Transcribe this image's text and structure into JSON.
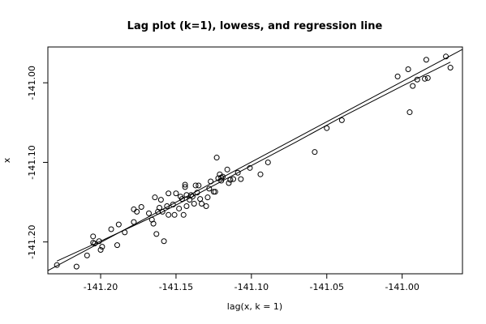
{
  "chart_data": {
    "type": "scatter",
    "title": "Lag plot (k=1), lowess, and regression line",
    "xlabel": "lag(x, k = 1)",
    "ylabel": "x",
    "xlim": [
      -141.235,
      -140.96
    ],
    "ylim": [
      -141.24,
      -140.955
    ],
    "xticks": [
      -141.2,
      -141.15,
      -141.1,
      -141.05,
      -141.0
    ],
    "xtick_labels": [
      "-141.20",
      "-141.15",
      "-141.10",
      "-141.05",
      "-141.00"
    ],
    "yticks": [
      -141.2,
      -141.1,
      -141.0
    ],
    "ytick_labels": [
      "-141.20",
      "-141.10",
      "-141.00"
    ],
    "grid": false,
    "points": [
      [
        -141.229,
        -141.229
      ],
      [
        -141.216,
        -141.231
      ],
      [
        -141.209,
        -141.217
      ],
      [
        -141.205,
        -141.193
      ],
      [
        -141.205,
        -141.201
      ],
      [
        -141.204,
        -141.202
      ],
      [
        -141.201,
        -141.199
      ],
      [
        -141.2,
        -141.21
      ],
      [
        -141.199,
        -141.206
      ],
      [
        -141.193,
        -141.184
      ],
      [
        -141.189,
        -141.204
      ],
      [
        -141.188,
        -141.178
      ],
      [
        -141.184,
        -141.188
      ],
      [
        -141.178,
        -141.175
      ],
      [
        -141.178,
        -141.159
      ],
      [
        -141.176,
        -141.162
      ],
      [
        -141.173,
        -141.156
      ],
      [
        -141.168,
        -141.164
      ],
      [
        -141.166,
        -141.172
      ],
      [
        -141.165,
        -141.177
      ],
      [
        -141.164,
        -141.144
      ],
      [
        -141.163,
        -141.19
      ],
      [
        -141.162,
        -141.162
      ],
      [
        -141.161,
        -141.157
      ],
      [
        -141.16,
        -141.147
      ],
      [
        -141.159,
        -141.162
      ],
      [
        -141.158,
        -141.199
      ],
      [
        -141.156,
        -141.155
      ],
      [
        -141.155,
        -141.166
      ],
      [
        -141.155,
        -141.139
      ],
      [
        -141.152,
        -141.153
      ],
      [
        -141.151,
        -141.166
      ],
      [
        -141.15,
        -141.139
      ],
      [
        -141.148,
        -141.158
      ],
      [
        -141.147,
        -141.143
      ],
      [
        -141.146,
        -141.146
      ],
      [
        -141.145,
        -141.166
      ],
      [
        -141.144,
        -141.128
      ],
      [
        -141.144,
        -141.131
      ],
      [
        -141.143,
        -141.141
      ],
      [
        -141.143,
        -141.155
      ],
      [
        -141.141,
        -141.147
      ],
      [
        -141.14,
        -141.141
      ],
      [
        -141.139,
        -141.143
      ],
      [
        -141.138,
        -141.152
      ],
      [
        -141.137,
        -141.129
      ],
      [
        -141.136,
        -141.138
      ],
      [
        -141.135,
        -141.129
      ],
      [
        -141.134,
        -141.146
      ],
      [
        -141.133,
        -141.152
      ],
      [
        -141.13,
        -141.155
      ],
      [
        -141.129,
        -141.144
      ],
      [
        -141.128,
        -141.133
      ],
      [
        -141.127,
        -141.124
      ],
      [
        -141.125,
        -141.137
      ],
      [
        -141.124,
        -141.137
      ],
      [
        -141.123,
        -141.094
      ],
      [
        -141.122,
        -141.12
      ],
      [
        -141.121,
        -141.115
      ],
      [
        -141.12,
        -141.123
      ],
      [
        -141.12,
        -141.119
      ],
      [
        -141.119,
        -141.118
      ],
      [
        -141.116,
        -141.109
      ],
      [
        -141.115,
        -141.126
      ],
      [
        -141.114,
        -141.122
      ],
      [
        -141.112,
        -141.121
      ],
      [
        -141.109,
        -141.113
      ],
      [
        -141.107,
        -141.121
      ],
      [
        -141.101,
        -141.107
      ],
      [
        -141.094,
        -141.115
      ],
      [
        -141.089,
        -141.1
      ],
      [
        -141.058,
        -141.087
      ],
      [
        -141.05,
        -141.057
      ],
      [
        -141.04,
        -141.047
      ],
      [
        -141.003,
        -140.992
      ],
      [
        -140.996,
        -140.983
      ],
      [
        -140.995,
        -141.037
      ],
      [
        -140.993,
        -141.004
      ],
      [
        -140.99,
        -140.996
      ],
      [
        -140.985,
        -140.995
      ],
      [
        -140.984,
        -140.971
      ],
      [
        -140.983,
        -140.994
      ],
      [
        -140.971,
        -140.967
      ],
      [
        -140.968,
        -140.981
      ]
    ],
    "regression_line": {
      "x": [
        -141.235,
        -140.96
      ],
      "y": [
        -141.236,
        -140.958
      ]
    },
    "lowess_line": {
      "x": [
        -141.229,
        -141.2,
        -141.165,
        -141.14,
        -141.12,
        -141.1,
        -141.07,
        -141.04,
        -141.0,
        -140.968
      ],
      "y": [
        -141.224,
        -141.199,
        -141.168,
        -141.144,
        -141.124,
        -141.104,
        -141.074,
        -141.043,
        -141.004,
        -140.974
      ]
    }
  }
}
